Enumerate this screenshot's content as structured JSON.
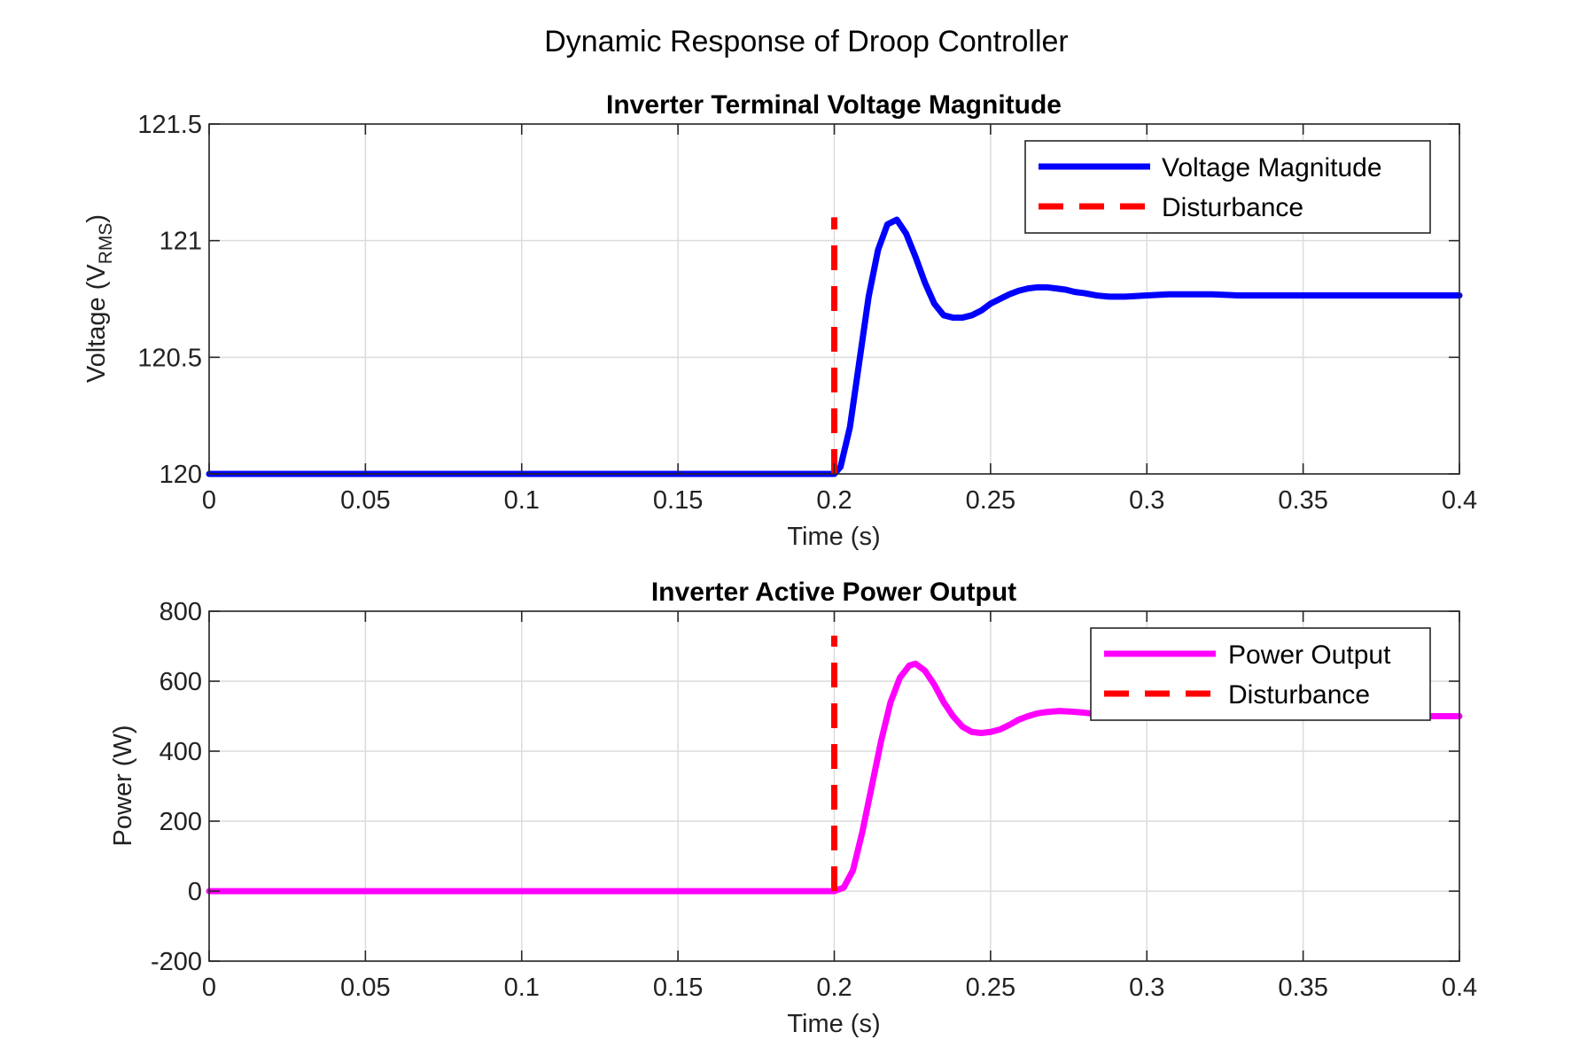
{
  "figure_title": "Dynamic Response of Droop Controller",
  "colors": {
    "voltage": "#0000ff",
    "power": "#ff00ff",
    "disturbance": "#ff0000"
  },
  "chart_data": [
    {
      "type": "line",
      "title": "Inverter Terminal Voltage Magnitude",
      "xlabel": "Time (s)",
      "ylabel_main": "Voltage (V",
      "ylabel_sub": "RMS",
      "ylabel_end": ")",
      "xlim": [
        0,
        0.4
      ],
      "ylim": [
        120,
        121.5
      ],
      "xticks": [
        0,
        0.05,
        0.1,
        0.15,
        0.2,
        0.25,
        0.3,
        0.35,
        0.4
      ],
      "xtick_labels": [
        "0",
        "0.05",
        "0.1",
        "0.15",
        "0.2",
        "0.25",
        "0.3",
        "0.35",
        "0.4"
      ],
      "yticks": [
        120,
        120.5,
        121,
        121.5
      ],
      "ytick_labels": [
        "120",
        "120.5",
        "121",
        "121.5"
      ],
      "grid": true,
      "legend_position": "top-right",
      "series": [
        {
          "name": "Voltage Magnitude",
          "style": "solid",
          "color_key": "voltage",
          "x": [
            0,
            0.2,
            0.202,
            0.205,
            0.208,
            0.211,
            0.214,
            0.217,
            0.22,
            0.223,
            0.226,
            0.229,
            0.232,
            0.235,
            0.238,
            0.241,
            0.244,
            0.247,
            0.25,
            0.253,
            0.256,
            0.259,
            0.262,
            0.265,
            0.268,
            0.271,
            0.274,
            0.277,
            0.28,
            0.284,
            0.288,
            0.293,
            0.3,
            0.307,
            0.314,
            0.321,
            0.33,
            0.345,
            0.36,
            0.38,
            0.4
          ],
          "y": [
            120.0,
            120.0,
            120.03,
            120.2,
            120.48,
            120.76,
            120.96,
            121.07,
            121.09,
            121.03,
            120.93,
            120.82,
            120.73,
            120.68,
            120.67,
            120.67,
            120.68,
            120.7,
            120.73,
            120.75,
            120.77,
            120.785,
            120.795,
            120.8,
            120.8,
            120.795,
            120.79,
            120.78,
            120.775,
            120.765,
            120.76,
            120.76,
            120.765,
            120.77,
            120.77,
            120.77,
            120.765,
            120.765,
            120.765,
            120.765,
            120.765
          ]
        },
        {
          "name": "Disturbance",
          "style": "dashed",
          "color_key": "disturbance",
          "x": [
            0.2,
            0.2
          ],
          "y": [
            120.0,
            121.1
          ]
        }
      ]
    },
    {
      "type": "line",
      "title": "Inverter Active Power Output",
      "xlabel": "Time (s)",
      "ylabel_main": "Power (W)",
      "ylabel_sub": "",
      "ylabel_end": "",
      "xlim": [
        0,
        0.4
      ],
      "ylim": [
        -200,
        800
      ],
      "xticks": [
        0,
        0.05,
        0.1,
        0.15,
        0.2,
        0.25,
        0.3,
        0.35,
        0.4
      ],
      "xtick_labels": [
        "0",
        "0.05",
        "0.1",
        "0.15",
        "0.2",
        "0.25",
        "0.3",
        "0.35",
        "0.4"
      ],
      "yticks": [
        -200,
        0,
        200,
        400,
        600,
        800
      ],
      "ytick_labels": [
        "-200",
        "0",
        "200",
        "400",
        "600",
        "800"
      ],
      "grid": true,
      "legend_position": "top-right",
      "series": [
        {
          "name": "Power Output",
          "style": "solid",
          "color_key": "power",
          "x": [
            0,
            0.2,
            0.203,
            0.206,
            0.209,
            0.212,
            0.215,
            0.218,
            0.221,
            0.224,
            0.226,
            0.229,
            0.232,
            0.235,
            0.238,
            0.241,
            0.244,
            0.247,
            0.25,
            0.253,
            0.256,
            0.259,
            0.262,
            0.265,
            0.268,
            0.272,
            0.276,
            0.28,
            0.285,
            0.29,
            0.295,
            0.3,
            0.31,
            0.32,
            0.33,
            0.34,
            0.36,
            0.38,
            0.4
          ],
          "y": [
            0,
            0,
            10,
            60,
            170,
            300,
            430,
            540,
            610,
            645,
            650,
            630,
            590,
            540,
            500,
            470,
            455,
            452,
            455,
            462,
            475,
            490,
            500,
            508,
            512,
            515,
            513,
            510,
            505,
            500,
            498,
            497,
            498,
            500,
            501,
            500,
            500,
            500,
            500
          ]
        },
        {
          "name": "Disturbance",
          "style": "dashed",
          "color_key": "disturbance",
          "x": [
            0.2,
            0.2
          ],
          "y": [
            0,
            730
          ]
        }
      ]
    }
  ]
}
